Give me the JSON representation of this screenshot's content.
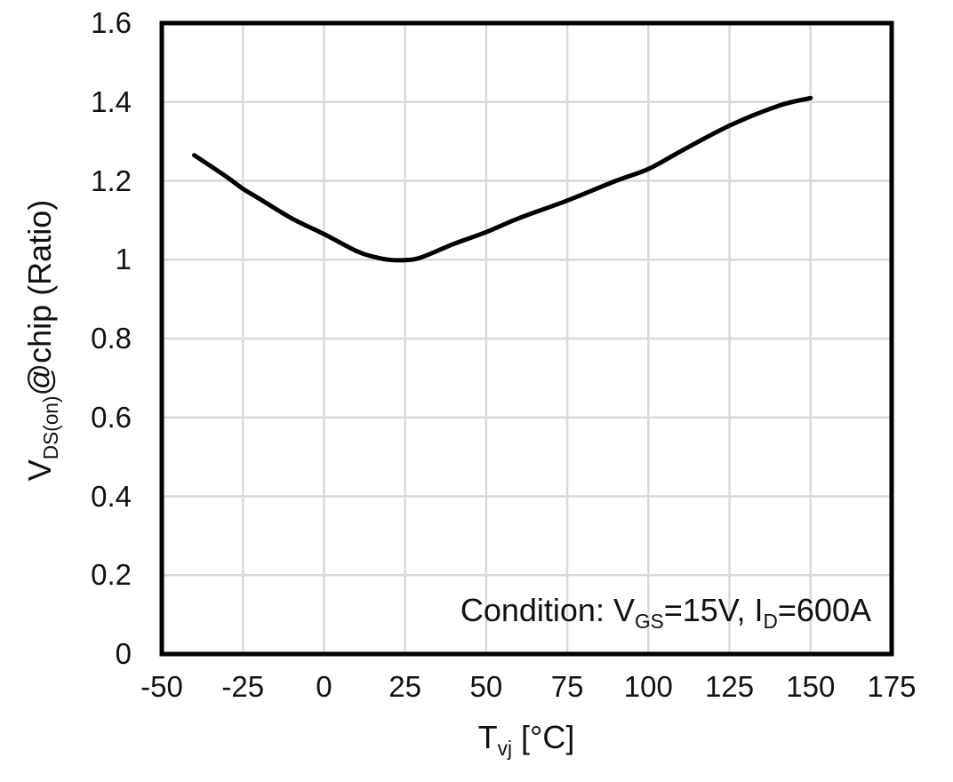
{
  "chart_data": {
    "type": "line",
    "title": "",
    "xlabel": "Tvj [°C]",
    "ylabel": "VDS(on)@chip (Ratio)",
    "xlabel_rich": {
      "base": "T",
      "sub": "vj",
      "rest": " [°C]"
    },
    "ylabel_rich": {
      "base": "V",
      "sub": "DS(on)",
      "rest": "@chip (Ratio)"
    },
    "xlim": [
      -50,
      175
    ],
    "ylim": [
      0,
      1.6
    ],
    "xticks": [
      "-50",
      "-25",
      "0",
      "25",
      "50",
      "75",
      "100",
      "125",
      "150",
      "175"
    ],
    "yticks": [
      "0",
      "0.2",
      "0.4",
      "0.6",
      "0.8",
      "1",
      "1.2",
      "1.4",
      "1.6"
    ],
    "grid": true,
    "legend": false,
    "series": [
      {
        "points": [
          [
            -40,
            1.265
          ],
          [
            -30,
            1.21
          ],
          [
            -25,
            1.18
          ],
          [
            -20,
            1.155
          ],
          [
            -10,
            1.105
          ],
          [
            0,
            1.065
          ],
          [
            10,
            1.022
          ],
          [
            15,
            1.008
          ],
          [
            20,
            1.0
          ],
          [
            25,
            0.999
          ],
          [
            30,
            1.006
          ],
          [
            40,
            1.04
          ],
          [
            50,
            1.07
          ],
          [
            60,
            1.105
          ],
          [
            75,
            1.15
          ],
          [
            90,
            1.2
          ],
          [
            100,
            1.23
          ],
          [
            110,
            1.275
          ],
          [
            125,
            1.34
          ],
          [
            140,
            1.39
          ],
          [
            150,
            1.41
          ]
        ]
      }
    ],
    "annotation": "Condition: VGS=15V, ID=600A",
    "annotation_rich": {
      "p1": "Condition: V",
      "s1": "GS",
      "p2": "=15V, I",
      "s2": "D",
      "p3": "=600A"
    },
    "colors": {
      "line": "#000000",
      "grid": "#d9d9d9",
      "axis_box": "#000000",
      "text": "#111111",
      "background": "#ffffff"
    }
  }
}
